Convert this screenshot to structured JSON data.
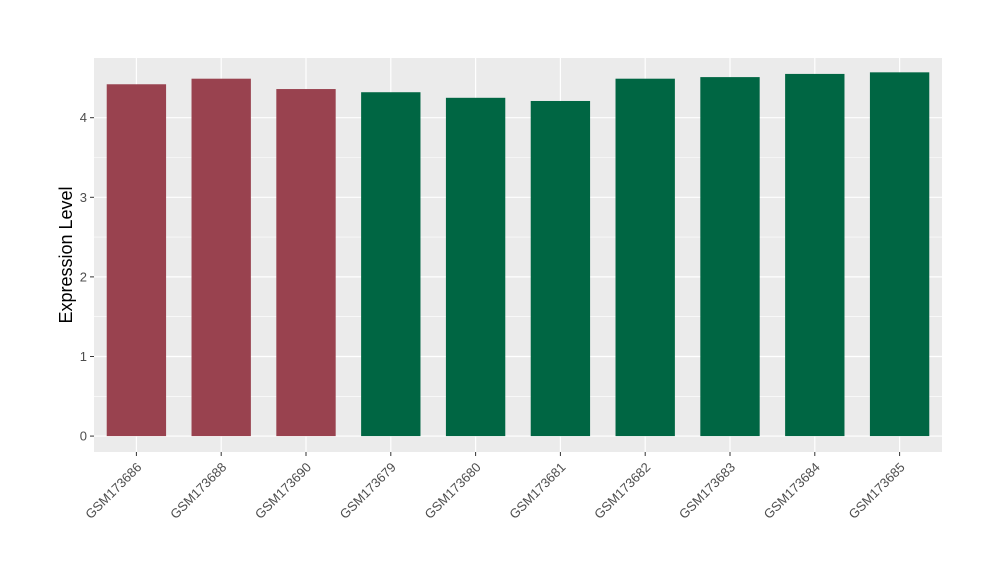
{
  "chart_data": {
    "type": "bar",
    "title": "",
    "xlabel": "",
    "ylabel": "Expression Level",
    "ylim": [
      -0.2,
      4.75
    ],
    "yticks": [
      0,
      1,
      2,
      3,
      4
    ],
    "grid": true,
    "legend": "none",
    "colors": {
      "group_a": "#99424f",
      "group_b": "#006643",
      "panel": "#ebebeb",
      "grid": "#ffffff"
    },
    "categories": [
      "GSM173686",
      "GSM173688",
      "GSM173690",
      "GSM173679",
      "GSM173680",
      "GSM173681",
      "GSM173682",
      "GSM173683",
      "GSM173684",
      "GSM173685"
    ],
    "values": [
      4.42,
      4.49,
      4.36,
      4.32,
      4.25,
      4.21,
      4.49,
      4.51,
      4.55,
      4.57
    ],
    "groups": [
      "group_a",
      "group_a",
      "group_a",
      "group_b",
      "group_b",
      "group_b",
      "group_b",
      "group_b",
      "group_b",
      "group_b"
    ]
  }
}
